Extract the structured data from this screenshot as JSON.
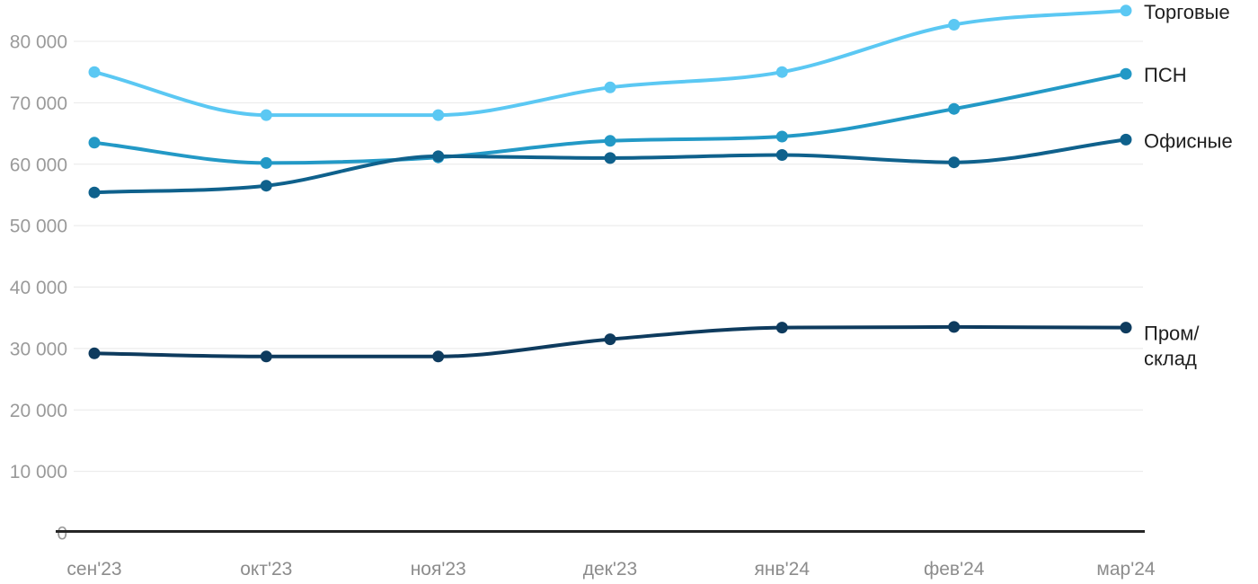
{
  "chart_data": {
    "type": "line",
    "title": "",
    "xlabel": "",
    "ylabel": "",
    "categories": [
      "сен'23",
      "окт'23",
      "ноя'23",
      "дек'23",
      "янв'24",
      "фев'24",
      "мар'24"
    ],
    "y_ticks": [
      "0",
      "10 000",
      "20 000",
      "30 000",
      "40 000",
      "50 000",
      "60 000",
      "70 000",
      "80 000"
    ],
    "ylim": [
      0,
      80000
    ],
    "grid": true,
    "legend_position": "right-end-of-line-labels",
    "series": [
      {
        "id": "torgovye",
        "name": "Торговые",
        "color": "#5BC8F3",
        "values": [
          75000,
          68000,
          68000,
          72500,
          75000,
          82700,
          85000
        ]
      },
      {
        "id": "psn",
        "name": "ПСН",
        "color": "#2399C6",
        "values": [
          63500,
          60200,
          61100,
          63800,
          64500,
          69000,
          74700
        ]
      },
      {
        "id": "ofisnye",
        "name": "Офисные",
        "color": "#0F618C",
        "values": [
          55400,
          56500,
          61300,
          61000,
          61500,
          60300,
          64000
        ]
      },
      {
        "id": "prom-sklad",
        "name": "Пром/склад",
        "label_lines": [
          "Пром/",
          "склад"
        ],
        "color": "#0E3B5E",
        "values": [
          29200,
          28700,
          28700,
          31500,
          33400,
          33500,
          33400
        ]
      }
    ]
  },
  "theme": {
    "background": "#ffffff",
    "grid_color": "#e8e8e8",
    "axis_color": "#262626",
    "y_tick_color": "#9a9a9a",
    "x_tick_color": "#8c8c8c",
    "series_label_color": "#1f1f1f"
  }
}
